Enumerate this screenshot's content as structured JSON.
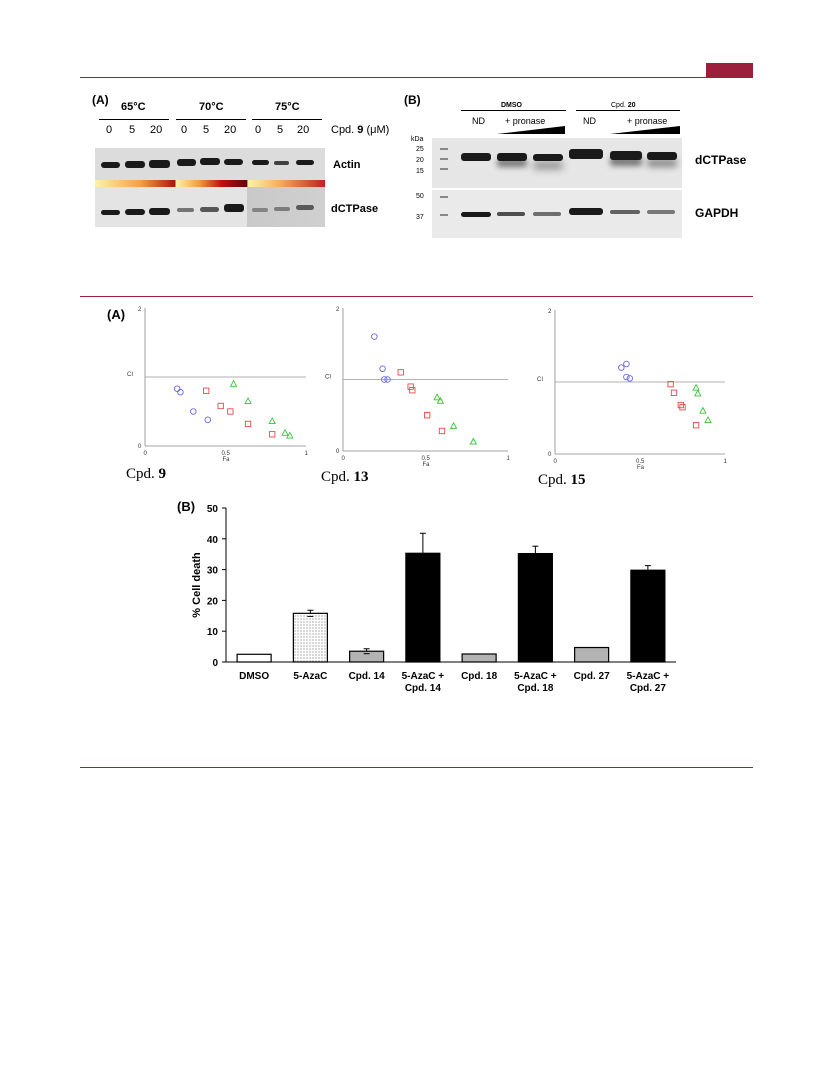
{
  "header": {
    "accent_color": "#9c1f3c"
  },
  "figure1": {
    "panel_a": {
      "label": "(A)",
      "temperatures": [
        "65°C",
        "70°C",
        "75°C"
      ],
      "doses": [
        "0",
        "5",
        "20",
        "0",
        "5",
        "20",
        "0",
        "5",
        "20"
      ],
      "dose_label_prefix": "Cpd. ",
      "dose_label_bold": "9",
      "dose_label_suffix": " (μM)",
      "row_labels": [
        "Actin",
        "dCTPase"
      ]
    },
    "panel_b": {
      "label": "(B)",
      "groups": [
        "DMSO",
        "Cpd. 20"
      ],
      "group2_prefix": "Cpd. ",
      "group2_bold": "20",
      "lane_nd": "ND",
      "lane_pronase": "+ pronase",
      "kda_label": "kDa",
      "markers_top": [
        "25",
        "20",
        "15"
      ],
      "markers_bottom": [
        "50",
        "37"
      ],
      "row_labels": [
        "dCTPase",
        "GAPDH"
      ]
    }
  },
  "figure2": {
    "panel_a_label": "(A)",
    "plots": [
      {
        "caption_prefix": "Cpd. ",
        "caption_bold": "9",
        "y_tick_top": "2",
        "y_tick_bottom": "0",
        "ylabel": "CI",
        "x_ticks": [
          "0",
          "0.5",
          "1"
        ],
        "xlabel": "Fa"
      },
      {
        "caption_prefix": "Cpd. ",
        "caption_bold": "13",
        "y_tick_top": "2",
        "y_tick_bottom": "0",
        "ylabel": "CI",
        "x_ticks": [
          "0",
          "0.5",
          "1"
        ],
        "xlabel": "Fa"
      },
      {
        "caption_prefix": "Cpd. ",
        "caption_bold": "15",
        "y_tick_top": "2",
        "y_tick_bottom": "0",
        "ylabel": "CI",
        "x_ticks": [
          "0",
          "0.5",
          "1"
        ],
        "xlabel": "Fa"
      }
    ],
    "panel_b_label": "(B)"
  },
  "chart_data": [
    {
      "type": "scatter",
      "title": "Cpd. 9",
      "xlabel": "Fa",
      "ylabel": "CI",
      "xlim": [
        0,
        1
      ],
      "ylim": [
        0,
        2
      ],
      "reference_line_y": 1,
      "series": [
        {
          "marker": "circle",
          "color": "#6a6ae8",
          "points": [
            [
              0.2,
              0.83
            ],
            [
              0.22,
              0.78
            ],
            [
              0.3,
              0.5
            ],
            [
              0.39,
              0.38
            ]
          ]
        },
        {
          "marker": "square",
          "color": "#e84a4a",
          "points": [
            [
              0.38,
              0.8
            ],
            [
              0.47,
              0.58
            ],
            [
              0.53,
              0.5
            ],
            [
              0.64,
              0.32
            ],
            [
              0.79,
              0.17
            ]
          ]
        },
        {
          "marker": "triangle",
          "color": "#3bc43b",
          "points": [
            [
              0.55,
              0.9
            ],
            [
              0.64,
              0.65
            ],
            [
              0.79,
              0.36
            ],
            [
              0.87,
              0.19
            ],
            [
              0.9,
              0.15
            ]
          ]
        }
      ]
    },
    {
      "type": "scatter",
      "title": "Cpd. 13",
      "xlabel": "Fa",
      "ylabel": "CI",
      "xlim": [
        0,
        1
      ],
      "ylim": [
        0,
        2
      ],
      "reference_line_y": 1,
      "series": [
        {
          "marker": "circle",
          "color": "#6a6ae8",
          "points": [
            [
              0.19,
              1.6
            ],
            [
              0.24,
              1.15
            ],
            [
              0.25,
              1.0
            ],
            [
              0.27,
              1.0
            ]
          ]
        },
        {
          "marker": "square",
          "color": "#e84a4a",
          "points": [
            [
              0.35,
              1.1
            ],
            [
              0.41,
              0.9
            ],
            [
              0.42,
              0.85
            ],
            [
              0.51,
              0.5
            ],
            [
              0.6,
              0.28
            ]
          ]
        },
        {
          "marker": "triangle",
          "color": "#3bc43b",
          "points": [
            [
              0.57,
              0.75
            ],
            [
              0.59,
              0.7
            ],
            [
              0.67,
              0.35
            ],
            [
              0.79,
              0.13
            ]
          ]
        }
      ]
    },
    {
      "type": "scatter",
      "title": "Cpd. 15",
      "xlabel": "Fa",
      "ylabel": "CI",
      "xlim": [
        0,
        1
      ],
      "ylim": [
        0,
        2
      ],
      "reference_line_y": 1,
      "series": [
        {
          "marker": "circle",
          "color": "#6a6ae8",
          "points": [
            [
              0.39,
              1.2
            ],
            [
              0.42,
              1.25
            ],
            [
              0.42,
              1.07
            ],
            [
              0.44,
              1.05
            ]
          ]
        },
        {
          "marker": "square",
          "color": "#e84a4a",
          "points": [
            [
              0.68,
              0.97
            ],
            [
              0.7,
              0.85
            ],
            [
              0.74,
              0.68
            ],
            [
              0.75,
              0.65
            ],
            [
              0.83,
              0.4
            ]
          ]
        },
        {
          "marker": "triangle",
          "color": "#3bc43b",
          "points": [
            [
              0.83,
              0.92
            ],
            [
              0.84,
              0.84
            ],
            [
              0.87,
              0.6
            ],
            [
              0.9,
              0.47
            ]
          ]
        }
      ]
    },
    {
      "type": "bar",
      "ylabel": "% Cell death",
      "ylim": [
        0,
        50
      ],
      "y_ticks": [
        "0",
        "10",
        "20",
        "30",
        "40",
        "50"
      ],
      "categories": [
        "DMSO",
        "5-AzaC",
        "Cpd. 14",
        "5-AzaC + Cpd. 14",
        "Cpd. 18",
        "5-AzaC + Cpd. 18",
        "Cpd. 27",
        "5-AzaC + Cpd. 27"
      ],
      "category_lines": [
        [
          "DMSO"
        ],
        [
          "5-AzaC"
        ],
        [
          "Cpd. 14"
        ],
        [
          "5-AzaC +",
          "Cpd. 14"
        ],
        [
          "Cpd. 18"
        ],
        [
          "5-AzaC +",
          "Cpd. 18"
        ],
        [
          "Cpd. 27"
        ],
        [
          "5-AzaC +",
          "Cpd. 27"
        ]
      ],
      "values": [
        2.5,
        15.8,
        3.5,
        35.3,
        2.6,
        35.2,
        4.7,
        29.8
      ],
      "errors": [
        0,
        1.0,
        0.8,
        6.5,
        0,
        2.4,
        0,
        1.5
      ],
      "fills": [
        "white",
        "dotted",
        "gray",
        "black",
        "gray",
        "black",
        "gray",
        "black"
      ]
    }
  ]
}
